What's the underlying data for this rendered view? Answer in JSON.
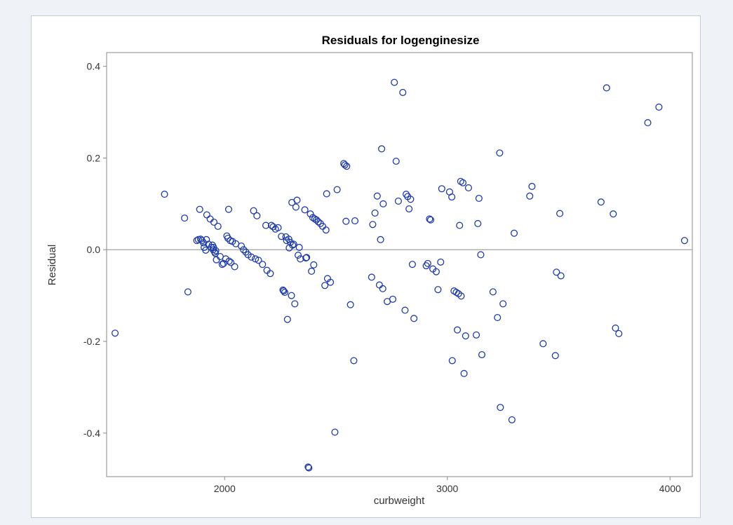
{
  "colors": {
    "marker": "#1f3ca6",
    "reference_line": "#a3a3a3",
    "axis": "#8a8a8a",
    "page_background": "#eff2f6"
  },
  "chart_data": {
    "type": "scatter",
    "title": "Residuals for logenginesize",
    "xlabel": "curbweight",
    "ylabel": "Residual",
    "xlim": [
      1470,
      4100
    ],
    "ylim": [
      -0.495,
      0.43
    ],
    "x_ticks": [
      2000,
      3000,
      4000
    ],
    "x_tick_labels": [
      "2000",
      "3000",
      "4000"
    ],
    "y_ticks": [
      -0.4,
      -0.2,
      0.0,
      0.2,
      0.4
    ],
    "y_tick_labels": [
      "-0.4",
      "-0.2",
      "0.0",
      "0.2",
      "0.4"
    ],
    "reference_line_y": 0.0,
    "grid": false,
    "marker": "open-circle",
    "series": [
      {
        "points": [
          [
            1508,
            -0.182
          ],
          [
            1730,
            0.121
          ],
          [
            1820,
            0.069
          ],
          [
            1835,
            -0.092
          ],
          [
            1875,
            0.02
          ],
          [
            1882,
            0.022
          ],
          [
            1888,
            0.088
          ],
          [
            1892,
            0.023
          ],
          [
            1898,
            0.02
          ],
          [
            1905,
            0.015
          ],
          [
            1908,
            0.005
          ],
          [
            1915,
            -0.001
          ],
          [
            1918,
            0.022
          ],
          [
            1920,
            0.076
          ],
          [
            1928,
            0.012
          ],
          [
            1935,
            0.067
          ],
          [
            1940,
            0.005
          ],
          [
            1945,
            0.01
          ],
          [
            1948,
            0.0
          ],
          [
            1950,
            0.005
          ],
          [
            1952,
            0.06
          ],
          [
            1955,
            -0.005
          ],
          [
            1958,
            -0.008
          ],
          [
            1960,
            -0.002
          ],
          [
            1963,
            -0.022
          ],
          [
            1970,
            0.051
          ],
          [
            1980,
            -0.015
          ],
          [
            1989,
            -0.032
          ],
          [
            1995,
            -0.03
          ],
          [
            2005,
            -0.02
          ],
          [
            2010,
            0.03
          ],
          [
            2015,
            0.025
          ],
          [
            2018,
            0.088
          ],
          [
            2020,
            -0.025
          ],
          [
            2025,
            0.02
          ],
          [
            2028,
            -0.028
          ],
          [
            2035,
            0.018
          ],
          [
            2045,
            -0.037
          ],
          [
            2050,
            0.013
          ],
          [
            2075,
            0.008
          ],
          [
            2085,
            0.0
          ],
          [
            2095,
            -0.005
          ],
          [
            2105,
            -0.011
          ],
          [
            2120,
            -0.016
          ],
          [
            2130,
            0.085
          ],
          [
            2138,
            -0.02
          ],
          [
            2145,
            0.074
          ],
          [
            2152,
            -0.023
          ],
          [
            2170,
            -0.032
          ],
          [
            2185,
            0.053
          ],
          [
            2190,
            -0.045
          ],
          [
            2205,
            -0.052
          ],
          [
            2210,
            0.053
          ],
          [
            2218,
            0.05
          ],
          [
            2228,
            0.045
          ],
          [
            2240,
            0.048
          ],
          [
            2255,
            0.029
          ],
          [
            2262,
            -0.088
          ],
          [
            2265,
            -0.09
          ],
          [
            2270,
            -0.093
          ],
          [
            2275,
            0.028
          ],
          [
            2278,
            0.02
          ],
          [
            2282,
            -0.152
          ],
          [
            2288,
            0.023
          ],
          [
            2290,
            0.004
          ],
          [
            2295,
            0.016
          ],
          [
            2300,
            -0.1
          ],
          [
            2302,
            0.103
          ],
          [
            2305,
            0.01
          ],
          [
            2310,
            0.012
          ],
          [
            2315,
            -0.118
          ],
          [
            2320,
            0.093
          ],
          [
            2325,
            0.108
          ],
          [
            2330,
            -0.012
          ],
          [
            2335,
            0.005
          ],
          [
            2340,
            -0.02
          ],
          [
            2360,
            0.087
          ],
          [
            2365,
            -0.018
          ],
          [
            2368,
            -0.017
          ],
          [
            2375,
            -0.474
          ],
          [
            2378,
            -0.476
          ],
          [
            2385,
            0.078
          ],
          [
            2390,
            -0.047
          ],
          [
            2396,
            0.07
          ],
          [
            2400,
            -0.033
          ],
          [
            2405,
            0.067
          ],
          [
            2412,
            0.065
          ],
          [
            2420,
            0.061
          ],
          [
            2430,
            0.057
          ],
          [
            2440,
            0.051
          ],
          [
            2450,
            -0.078
          ],
          [
            2455,
            0.043
          ],
          [
            2458,
            0.122
          ],
          [
            2462,
            -0.063
          ],
          [
            2475,
            -0.071
          ],
          [
            2495,
            -0.398
          ],
          [
            2505,
            0.131
          ],
          [
            2535,
            0.188
          ],
          [
            2540,
            0.185
          ],
          [
            2545,
            0.062
          ],
          [
            2548,
            0.182
          ],
          [
            2565,
            -0.12
          ],
          [
            2580,
            -0.242
          ],
          [
            2585,
            0.063
          ],
          [
            2660,
            -0.06
          ],
          [
            2665,
            0.055
          ],
          [
            2675,
            0.08
          ],
          [
            2685,
            0.117
          ],
          [
            2695,
            -0.077
          ],
          [
            2700,
            0.022
          ],
          [
            2705,
            0.22
          ],
          [
            2710,
            -0.085
          ],
          [
            2712,
            0.1
          ],
          [
            2730,
            -0.113
          ],
          [
            2755,
            -0.108
          ],
          [
            2762,
            0.365
          ],
          [
            2770,
            0.193
          ],
          [
            2780,
            0.106
          ],
          [
            2800,
            0.343
          ],
          [
            2810,
            -0.132
          ],
          [
            2815,
            0.121
          ],
          [
            2822,
            0.116
          ],
          [
            2828,
            0.089
          ],
          [
            2835,
            0.11
          ],
          [
            2843,
            -0.032
          ],
          [
            2850,
            -0.15
          ],
          [
            2905,
            -0.035
          ],
          [
            2912,
            -0.03
          ],
          [
            2920,
            0.067
          ],
          [
            2925,
            0.065
          ],
          [
            2935,
            -0.042
          ],
          [
            2950,
            -0.048
          ],
          [
            2958,
            -0.087
          ],
          [
            2970,
            -0.027
          ],
          [
            2975,
            0.133
          ],
          [
            3010,
            0.126
          ],
          [
            3020,
            0.115
          ],
          [
            3022,
            -0.242
          ],
          [
            3030,
            -0.09
          ],
          [
            3040,
            -0.093
          ],
          [
            3045,
            -0.175
          ],
          [
            3050,
            -0.096
          ],
          [
            3055,
            0.053
          ],
          [
            3060,
            0.149
          ],
          [
            3062,
            -0.101
          ],
          [
            3070,
            0.146
          ],
          [
            3075,
            -0.27
          ],
          [
            3082,
            -0.188
          ],
          [
            3095,
            0.135
          ],
          [
            3130,
            -0.186
          ],
          [
            3137,
            0.057
          ],
          [
            3142,
            0.112
          ],
          [
            3150,
            -0.011
          ],
          [
            3155,
            -0.229
          ],
          [
            3205,
            -0.092
          ],
          [
            3225,
            -0.148
          ],
          [
            3235,
            0.211
          ],
          [
            3238,
            -0.344
          ],
          [
            3250,
            -0.118
          ],
          [
            3290,
            -0.371
          ],
          [
            3300,
            0.036
          ],
          [
            3430,
            -0.205
          ],
          [
            3370,
            0.117
          ],
          [
            3380,
            0.138
          ],
          [
            3485,
            -0.231
          ],
          [
            3490,
            -0.049
          ],
          [
            3505,
            0.079
          ],
          [
            3510,
            -0.057
          ],
          [
            3690,
            0.104
          ],
          [
            3715,
            0.353
          ],
          [
            3745,
            0.078
          ],
          [
            3755,
            -0.171
          ],
          [
            3770,
            -0.183
          ],
          [
            3900,
            0.277
          ],
          [
            3950,
            0.311
          ],
          [
            4065,
            0.02
          ]
        ]
      }
    ]
  }
}
